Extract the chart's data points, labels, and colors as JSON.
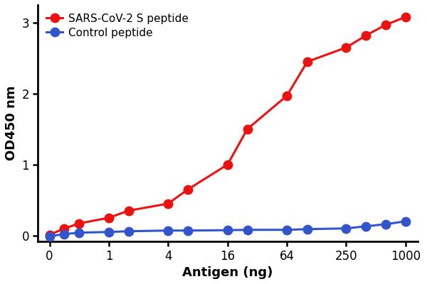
{
  "x_values": [
    0,
    0.25,
    0.5,
    1,
    2,
    4,
    8,
    16,
    32,
    64,
    128,
    250,
    500,
    750,
    1000
  ],
  "red_y": [
    0.01,
    0.1,
    0.17,
    0.25,
    0.35,
    0.45,
    0.65,
    1.0,
    1.5,
    1.97,
    2.45,
    2.65,
    2.82,
    2.97,
    3.08
  ],
  "blue_y": [
    -0.01,
    0.02,
    0.04,
    0.05,
    0.06,
    0.07,
    0.07,
    0.075,
    0.08,
    0.08,
    0.09,
    0.1,
    0.13,
    0.16,
    0.2
  ],
  "red_color": "#EE1111",
  "blue_color": "#3355CC",
  "ylabel": "OD450 nm",
  "xlabel": "Antigen (ng)",
  "red_label": "SARS-CoV-2 S peptide",
  "blue_label": "Control peptide",
  "ylim": [
    -0.08,
    3.25
  ],
  "yticks": [
    0,
    1,
    2,
    3
  ],
  "xtick_positions": [
    0,
    1,
    4,
    16,
    64,
    250,
    1000
  ],
  "xtick_labels": [
    "0",
    "1",
    "4",
    "16",
    "64",
    "250",
    "1000"
  ],
  "line_width": 2.2,
  "marker_size": 9,
  "bg_color": "#ffffff",
  "label_fontsize": 13,
  "tick_fontsize": 12
}
